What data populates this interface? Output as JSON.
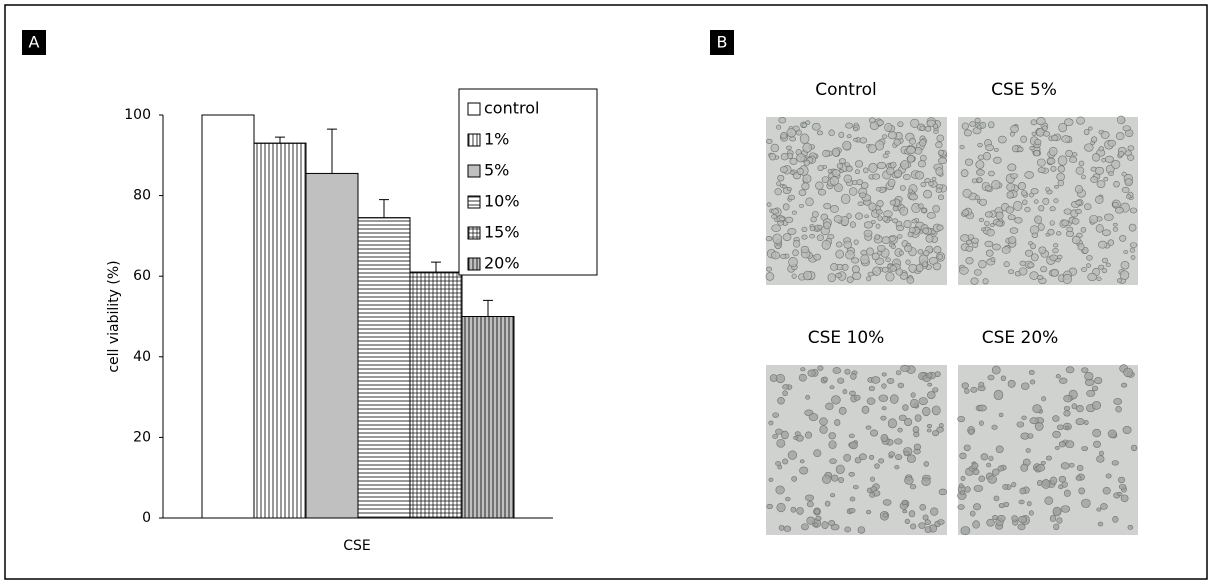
{
  "panel_a": {
    "label": "A"
  },
  "panel_b": {
    "label": "B",
    "images": [
      {
        "caption": "Control"
      },
      {
        "caption": "CSE 5%"
      },
      {
        "caption": "CSE 10%"
      },
      {
        "caption": "CSE 20%"
      }
    ]
  },
  "chart_data": {
    "type": "bar",
    "ylabel": "cell viability (%)",
    "xlabel": "CSE",
    "categories": [
      "CSE"
    ],
    "series": [
      {
        "name": "control",
        "color": "#ffffff",
        "pattern": "none",
        "values": [
          100
        ],
        "errors": [
          0
        ]
      },
      {
        "name": "1%",
        "color": "#ffffff",
        "pattern": "vertical",
        "values": [
          93
        ],
        "errors": [
          1.5
        ]
      },
      {
        "name": "5%",
        "color": "#c0c0c0",
        "pattern": "none",
        "values": [
          85.5
        ],
        "errors": [
          11
        ]
      },
      {
        "name": "10%",
        "color": "#ffffff",
        "pattern": "horizontal",
        "values": [
          74.5
        ],
        "errors": [
          4.5
        ]
      },
      {
        "name": "15%",
        "color": "#ffffff",
        "pattern": "grid",
        "values": [
          61
        ],
        "errors": [
          2.5
        ]
      },
      {
        "name": "20%",
        "color": "#c0c0c0",
        "pattern": "vertical",
        "values": [
          50
        ],
        "errors": [
          4
        ]
      }
    ],
    "ylim": [
      0,
      100
    ],
    "yticks": [
      0,
      20,
      40,
      60,
      80,
      100
    ],
    "legend": "top-right"
  }
}
